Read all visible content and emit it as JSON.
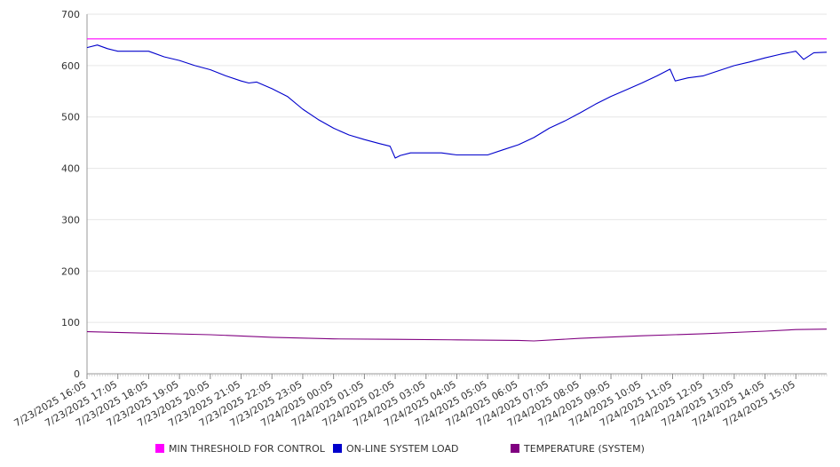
{
  "chart_data": {
    "type": "line",
    "title": "",
    "xlabel": "",
    "ylabel": "",
    "ylim": [
      0,
      700
    ],
    "yticks": [
      0,
      100,
      200,
      300,
      400,
      500,
      600,
      700
    ],
    "grid": true,
    "legend_position": "bottom",
    "x_start": "7/23/2025 16:05",
    "x_end": "7/24/2025 16:05",
    "x_tick_labels": [
      "7/23/2025 16:05",
      "7/23/2025 17:05",
      "7/23/2025 18:05",
      "7/23/2025 19:05",
      "7/23/2025 20:05",
      "7/23/2025 21:05",
      "7/23/2025 22:05",
      "7/23/2025 23:05",
      "7/24/2025 00:05",
      "7/24/2025 01:05",
      "7/24/2025 02:05",
      "7/24/2025 03:05",
      "7/24/2025 04:05",
      "7/24/2025 05:05",
      "7/24/2025 06:05",
      "7/24/2025 07:05",
      "7/24/2025 08:05",
      "7/24/2025 09:05",
      "7/24/2025 10:05",
      "7/24/2025 11:05",
      "7/24/2025 12:05",
      "7/24/2025 13:05",
      "7/24/2025 14:05",
      "7/24/2025 15:05"
    ],
    "series": [
      {
        "name": "MIN THRESHOLD FOR CONTROL",
        "color": "#ff00ff",
        "x": [
          "7/23/2025 16:05",
          "7/24/2025 16:05"
        ],
        "values": [
          652,
          652
        ]
      },
      {
        "name": "ON-LINE SYSTEM LOAD",
        "color": "#0000cc",
        "x": [
          "7/23/2025 16:05",
          "7/23/2025 16:25",
          "7/23/2025 16:45",
          "7/23/2025 17:05",
          "7/23/2025 17:35",
          "7/23/2025 18:05",
          "7/23/2025 18:35",
          "7/23/2025 19:05",
          "7/23/2025 19:35",
          "7/23/2025 20:05",
          "7/23/2025 20:35",
          "7/23/2025 21:05",
          "7/23/2025 21:20",
          "7/23/2025 21:35",
          "7/23/2025 22:05",
          "7/23/2025 22:35",
          "7/23/2025 23:05",
          "7/23/2025 23:35",
          "7/24/2025 00:05",
          "7/24/2025 00:35",
          "7/24/2025 01:05",
          "7/24/2025 01:35",
          "7/24/2025 01:55",
          "7/24/2025 02:05",
          "7/24/2025 02:15",
          "7/24/2025 02:35",
          "7/24/2025 03:05",
          "7/24/2025 03:35",
          "7/24/2025 04:05",
          "7/24/2025 04:35",
          "7/24/2025 05:05",
          "7/24/2025 05:35",
          "7/24/2025 06:05",
          "7/24/2025 06:35",
          "7/24/2025 07:05",
          "7/24/2025 07:35",
          "7/24/2025 08:05",
          "7/24/2025 08:35",
          "7/24/2025 09:05",
          "7/24/2025 09:35",
          "7/24/2025 10:05",
          "7/24/2025 10:35",
          "7/24/2025 11:00",
          "7/24/2025 11:10",
          "7/24/2025 11:35",
          "7/24/2025 12:05",
          "7/24/2025 12:35",
          "7/24/2025 13:05",
          "7/24/2025 13:35",
          "7/24/2025 14:05",
          "7/24/2025 14:35",
          "7/24/2025 15:05",
          "7/24/2025 15:20",
          "7/24/2025 15:40",
          "7/24/2025 16:05"
        ],
        "values": [
          635,
          640,
          633,
          628,
          628,
          628,
          617,
          610,
          600,
          592,
          580,
          570,
          566,
          568,
          555,
          540,
          515,
          495,
          478,
          465,
          456,
          448,
          443,
          420,
          425,
          430,
          430,
          430,
          426,
          426,
          426,
          436,
          446,
          460,
          478,
          492,
          508,
          525,
          540,
          553,
          566,
          580,
          593,
          570,
          576,
          580,
          590,
          600,
          607,
          615,
          622,
          628,
          612,
          625,
          626
        ]
      },
      {
        "name": "TEMPERATURE (SYSTEM)",
        "color": "#800080",
        "x": [
          "7/23/2025 16:05",
          "7/23/2025 18:05",
          "7/23/2025 20:05",
          "7/23/2025 22:05",
          "7/24/2025 00:05",
          "7/24/2025 02:05",
          "7/24/2025 04:05",
          "7/24/2025 06:05",
          "7/24/2025 06:35",
          "7/24/2025 08:05",
          "7/24/2025 10:05",
          "7/24/2025 12:05",
          "7/24/2025 14:05",
          "7/24/2025 15:05",
          "7/24/2025 16:05"
        ],
        "values": [
          82,
          79,
          76,
          71,
          68,
          67,
          66,
          65,
          64,
          69,
          74,
          78,
          83,
          86,
          87
        ]
      }
    ]
  }
}
